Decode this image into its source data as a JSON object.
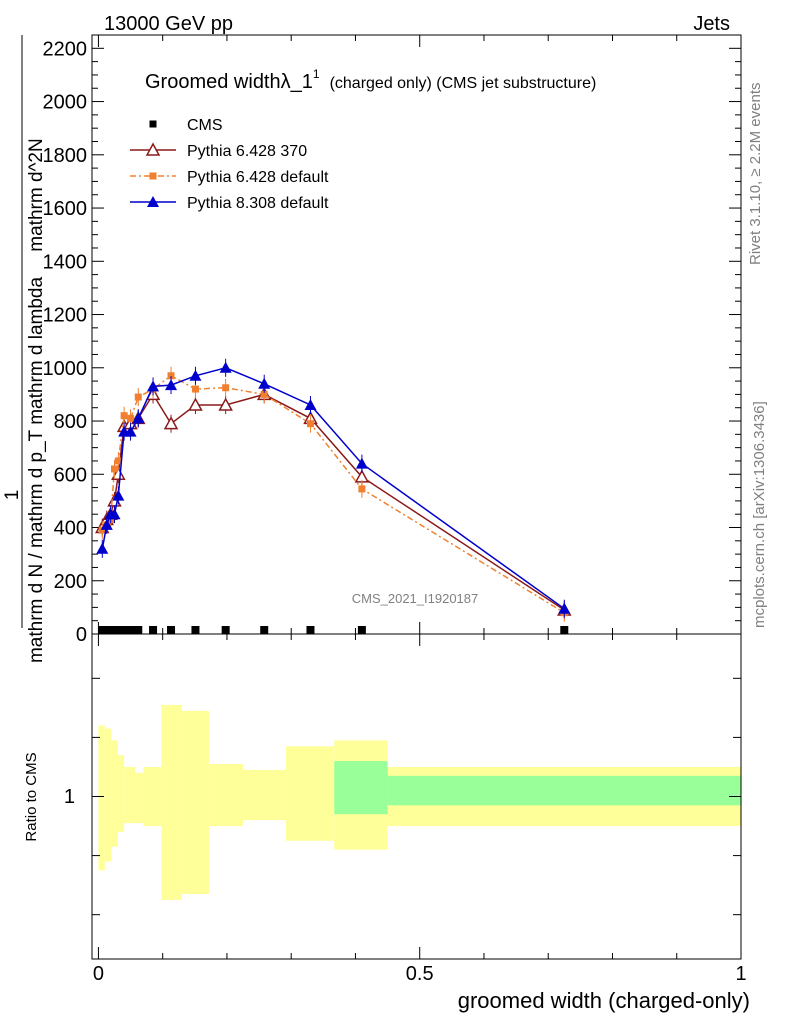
{
  "header": {
    "left": "13000 GeV pp",
    "right": "Jets"
  },
  "side_labels": {
    "rivet": "Rivet 3.1.10, ≥ 2.2M events",
    "mcplots": "mcplots.cern.ch [arXiv:1306.3436]"
  },
  "chart_data": [
    {
      "type": "line",
      "title": "Groomed widthλ_1",
      "title_sup": "1",
      "title_suffix": "(charged only) (CMS jet substructure)",
      "watermark": "CMS_2021_I1920187",
      "ylabel_numerator": "1",
      "ylabel_lines": [
        "mathrm d N / mathrm d p_T mathrm d lambda",
        "mathrm d^2N",
        "mathrm d p_T mathrm d lambda"
      ],
      "ylabel_top": "mathrm d^2N",
      "ylabel_bottom": "mathrm d N / mathrm d p_T mathrm d lambda",
      "ylim": [
        0,
        2250
      ],
      "yticks": [
        0,
        200,
        400,
        600,
        800,
        1000,
        1200,
        1400,
        1600,
        1800,
        2000,
        2200
      ],
      "xlim": [
        -0.01,
        1.0
      ],
      "series": [
        {
          "name": "CMS",
          "color": "#000000",
          "marker": "square",
          "x": [
            0.006,
            0.013,
            0.019,
            0.025,
            0.031,
            0.04,
            0.05,
            0.062,
            0.085,
            0.113,
            0.151,
            0.198,
            0.258,
            0.33,
            0.41,
            0.725
          ],
          "y": [
            0,
            0,
            0,
            0,
            0,
            0,
            0,
            0,
            0,
            0,
            0,
            0,
            0,
            0,
            0,
            0
          ]
        },
        {
          "name": "Pythia 6.428 370",
          "color": "#8b1a1a",
          "marker": "triangle-open",
          "dash": "",
          "x": [
            0.006,
            0.013,
            0.019,
            0.025,
            0.031,
            0.04,
            0.05,
            0.062,
            0.085,
            0.113,
            0.151,
            0.198,
            0.258,
            0.33,
            0.41,
            0.725
          ],
          "y": [
            400,
            430,
            450,
            500,
            600,
            780,
            790,
            810,
            900,
            790,
            860,
            860,
            900,
            810,
            590,
            90
          ]
        },
        {
          "name": "Pythia 6.428 default",
          "color": "#f08030",
          "marker": "square-small",
          "dash": "6,3,2,3",
          "x": [
            0.006,
            0.013,
            0.019,
            0.025,
            0.031,
            0.04,
            0.05,
            0.062,
            0.085,
            0.113,
            0.151,
            0.198,
            0.258,
            0.33,
            0.41,
            0.725
          ],
          "y": [
            390,
            410,
            430,
            620,
            650,
            820,
            810,
            890,
            920,
            970,
            920,
            925,
            900,
            790,
            545,
            80
          ]
        },
        {
          "name": "Pythia 8.308 default",
          "color": "#0000cc",
          "marker": "triangle",
          "dash": "",
          "x": [
            0.006,
            0.013,
            0.019,
            0.025,
            0.031,
            0.04,
            0.05,
            0.062,
            0.085,
            0.113,
            0.151,
            0.198,
            0.258,
            0.33,
            0.41,
            0.725
          ],
          "y": [
            320,
            410,
            450,
            450,
            520,
            760,
            760,
            810,
            930,
            935,
            970,
            1000,
            940,
            860,
            640,
            95
          ]
        }
      ]
    },
    {
      "type": "area",
      "ylabel": "Ratio to CMS",
      "xlabel": "groomed width (charged-only)",
      "xticks": [
        "0",
        "0.5",
        "1"
      ],
      "ytick_label": "1",
      "xlim": [
        -0.01,
        1.0
      ],
      "ylim": [
        0.45,
        1.55
      ],
      "bands_yellow": [
        {
          "x0": 0.0,
          "x1": 0.01,
          "lo": 0.75,
          "hi": 1.24
        },
        {
          "x0": 0.01,
          "x1": 0.02,
          "lo": 0.78,
          "hi": 1.23
        },
        {
          "x0": 0.02,
          "x1": 0.03,
          "lo": 0.83,
          "hi": 1.19
        },
        {
          "x0": 0.03,
          "x1": 0.04,
          "lo": 0.88,
          "hi": 1.14
        },
        {
          "x0": 0.04,
          "x1": 0.057,
          "lo": 0.91,
          "hi": 1.1
        },
        {
          "x0": 0.057,
          "x1": 0.07,
          "lo": 0.91,
          "hi": 1.08
        },
        {
          "x0": 0.07,
          "x1": 0.098,
          "lo": 0.9,
          "hi": 1.1
        },
        {
          "x0": 0.098,
          "x1": 0.13,
          "lo": 0.65,
          "hi": 1.31
        },
        {
          "x0": 0.13,
          "x1": 0.172,
          "lo": 0.67,
          "hi": 1.29
        },
        {
          "x0": 0.172,
          "x1": 0.225,
          "lo": 0.9,
          "hi": 1.11
        },
        {
          "x0": 0.225,
          "x1": 0.292,
          "lo": 0.92,
          "hi": 1.09
        },
        {
          "x0": 0.292,
          "x1": 0.367,
          "lo": 0.85,
          "hi": 1.17
        },
        {
          "x0": 0.367,
          "x1": 0.45,
          "lo": 0.82,
          "hi": 1.19
        },
        {
          "x0": 0.45,
          "x1": 1.0,
          "lo": 0.9,
          "hi": 1.1
        }
      ],
      "bands_green": [
        {
          "x0": 0.367,
          "x1": 0.45,
          "lo": 0.94,
          "hi": 1.12
        },
        {
          "x0": 0.45,
          "x1": 1.0,
          "lo": 0.97,
          "hi": 1.07
        }
      ],
      "colors": {
        "yellow": "#ffff99",
        "green": "#99ff99"
      }
    }
  ]
}
